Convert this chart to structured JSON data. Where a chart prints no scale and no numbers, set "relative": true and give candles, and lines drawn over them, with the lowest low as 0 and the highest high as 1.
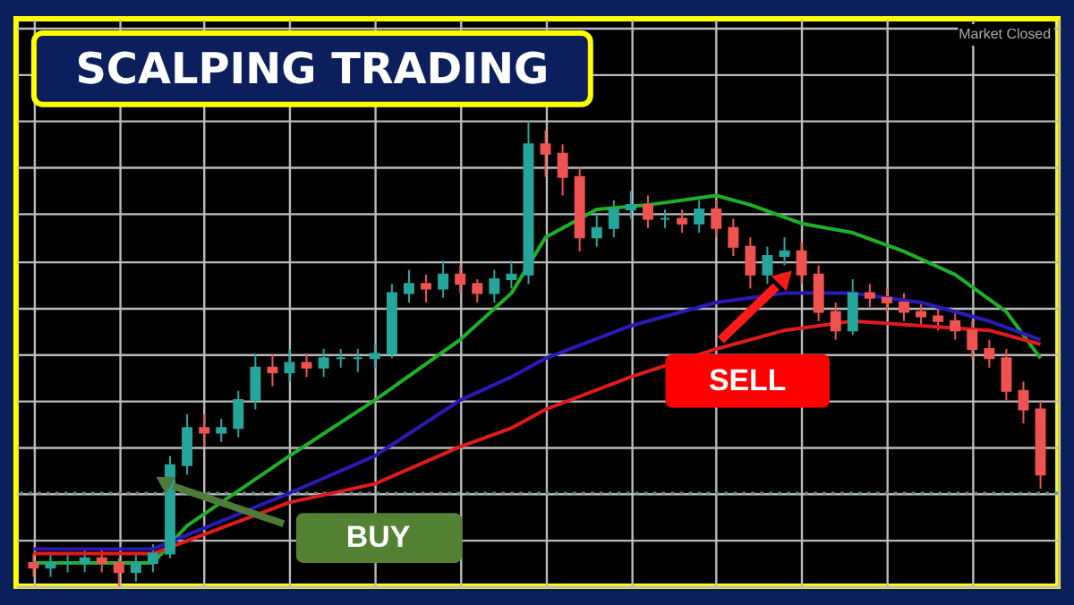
{
  "chart_data": {
    "type": "candlestick",
    "title": "SCALPING TRADING",
    "relative": true,
    "grid": true,
    "categories": [
      null,
      null,
      null,
      null,
      null,
      null,
      null,
      null,
      null,
      null,
      null,
      null,
      null,
      null,
      null,
      null,
      null,
      null,
      null,
      null,
      null,
      null,
      null,
      null,
      null,
      null,
      null,
      null,
      null,
      null,
      null,
      null,
      null,
      null,
      null,
      null,
      null,
      null,
      null,
      null,
      null,
      null,
      null,
      null,
      null,
      null,
      null,
      null,
      null,
      null,
      null,
      null,
      null,
      null,
      null,
      null,
      null,
      null,
      null,
      null
    ],
    "ohlc": [
      [
        0.05,
        0.07,
        0.02,
        0.04
      ],
      [
        0.04,
        0.07,
        0.02,
        0.05
      ],
      [
        0.05,
        0.07,
        0.03,
        0.05
      ],
      [
        0.05,
        0.08,
        0.03,
        0.06
      ],
      [
        0.06,
        0.08,
        0.03,
        0.05
      ],
      [
        0.05,
        0.06,
        0.0,
        0.03
      ],
      [
        0.03,
        0.07,
        0.01,
        0.05
      ],
      [
        0.05,
        0.09,
        0.03,
        0.07
      ],
      [
        0.07,
        0.28,
        0.06,
        0.26
      ],
      [
        0.26,
        0.37,
        0.24,
        0.34
      ],
      [
        0.34,
        0.37,
        0.3,
        0.33
      ],
      [
        0.33,
        0.36,
        0.31,
        0.34
      ],
      [
        0.34,
        0.42,
        0.32,
        0.4
      ],
      [
        0.4,
        0.5,
        0.38,
        0.47
      ],
      [
        0.47,
        0.5,
        0.43,
        0.46
      ],
      [
        0.46,
        0.51,
        0.44,
        0.48
      ],
      [
        0.48,
        0.5,
        0.45,
        0.47
      ],
      [
        0.47,
        0.51,
        0.45,
        0.49
      ],
      [
        0.49,
        0.51,
        0.47,
        0.49
      ],
      [
        0.49,
        0.51,
        0.46,
        0.49
      ],
      [
        0.49,
        0.52,
        0.47,
        0.5
      ],
      [
        0.5,
        0.65,
        0.49,
        0.63
      ],
      [
        0.63,
        0.68,
        0.61,
        0.65
      ],
      [
        0.65,
        0.67,
        0.61,
        0.64
      ],
      [
        0.64,
        0.7,
        0.62,
        0.67
      ],
      [
        0.67,
        0.69,
        0.63,
        0.65
      ],
      [
        0.65,
        0.66,
        0.61,
        0.63
      ],
      [
        0.63,
        0.68,
        0.61,
        0.66
      ],
      [
        0.66,
        0.7,
        0.64,
        0.67
      ],
      [
        0.67,
        1.0,
        0.65,
        0.95
      ],
      [
        0.95,
        0.98,
        0.88,
        0.93
      ],
      [
        0.93,
        0.95,
        0.84,
        0.88
      ],
      [
        0.88,
        0.9,
        0.72,
        0.75
      ],
      [
        0.75,
        0.8,
        0.73,
        0.77
      ],
      [
        0.77,
        0.83,
        0.75,
        0.81
      ],
      [
        0.81,
        0.85,
        0.79,
        0.82
      ],
      [
        0.82,
        0.84,
        0.77,
        0.79
      ],
      [
        0.79,
        0.81,
        0.77,
        0.79
      ],
      [
        0.79,
        0.81,
        0.76,
        0.78
      ],
      [
        0.78,
        0.83,
        0.76,
        0.81
      ],
      [
        0.81,
        0.83,
        0.75,
        0.77
      ],
      [
        0.77,
        0.79,
        0.71,
        0.73
      ],
      [
        0.73,
        0.75,
        0.64,
        0.67
      ],
      [
        0.67,
        0.73,
        0.65,
        0.71
      ],
      [
        0.71,
        0.75,
        0.69,
        0.72
      ],
      [
        0.72,
        0.74,
        0.65,
        0.67
      ],
      [
        0.67,
        0.69,
        0.57,
        0.59
      ],
      [
        0.59,
        0.61,
        0.53,
        0.55
      ],
      [
        0.55,
        0.66,
        0.54,
        0.63
      ],
      [
        0.63,
        0.65,
        0.6,
        0.62
      ],
      [
        0.62,
        0.64,
        0.59,
        0.61
      ],
      [
        0.61,
        0.63,
        0.57,
        0.59
      ],
      [
        0.59,
        0.61,
        0.56,
        0.58
      ],
      [
        0.58,
        0.6,
        0.55,
        0.57
      ],
      [
        0.57,
        0.59,
        0.53,
        0.55
      ],
      [
        0.55,
        0.57,
        0.49,
        0.51
      ],
      [
        0.51,
        0.53,
        0.47,
        0.49
      ],
      [
        0.49,
        0.51,
        0.4,
        0.42
      ],
      [
        0.42,
        0.44,
        0.35,
        0.38
      ],
      [
        0.38,
        0.4,
        0.21,
        0.24
      ]
    ],
    "series": [
      {
        "type": "line",
        "color": "#1fb02a",
        "values": [
          0.05,
          null,
          null,
          null,
          null,
          null,
          null,
          0.05,
          null,
          0.13,
          null,
          null,
          null,
          null,
          null,
          0.28,
          null,
          null,
          null,
          null,
          0.4,
          null,
          null,
          null,
          null,
          0.53,
          null,
          null,
          0.63,
          null,
          0.75,
          null,
          null,
          0.81,
          null,
          null,
          0.82,
          null,
          null,
          null,
          0.84,
          null,
          0.82,
          null,
          null,
          0.78,
          null,
          null,
          0.76,
          null,
          null,
          0.72,
          null,
          null,
          0.67,
          null,
          null,
          0.59,
          null,
          0.49
        ]
      },
      {
        "type": "line",
        "color": "#2a1ab8",
        "values": [
          0.08,
          null,
          null,
          null,
          null,
          null,
          null,
          0.08,
          null,
          null,
          null,
          null,
          null,
          null,
          null,
          0.2,
          null,
          null,
          null,
          null,
          0.28,
          null,
          null,
          null,
          null,
          0.4,
          null,
          null,
          0.45,
          null,
          0.49,
          null,
          null,
          null,
          null,
          0.56,
          null,
          null,
          null,
          null,
          0.61,
          null,
          null,
          null,
          0.63,
          null,
          null,
          null,
          0.63,
          null,
          null,
          null,
          0.61,
          null,
          null,
          null,
          0.57,
          null,
          null,
          0.53
        ]
      },
      {
        "type": "line",
        "color": "#e01b1b",
        "values": [
          0.07,
          null,
          null,
          null,
          null,
          null,
          null,
          0.07,
          null,
          null,
          null,
          null,
          null,
          null,
          null,
          0.18,
          null,
          null,
          null,
          null,
          0.22,
          null,
          null,
          null,
          null,
          0.3,
          null,
          null,
          0.34,
          null,
          0.38,
          null,
          null,
          null,
          null,
          0.45,
          null,
          null,
          null,
          null,
          0.51,
          null,
          null,
          null,
          0.55,
          null,
          null,
          null,
          0.57,
          null,
          null,
          null,
          0.56,
          null,
          null,
          null,
          0.55,
          null,
          null,
          0.52
        ]
      }
    ],
    "ref_lines": [
      {
        "axis": "y",
        "value": 0.2,
        "line_style": "dotted",
        "color": "#6b8a8a"
      }
    ],
    "annotations": [
      "BUY",
      "SELL",
      "Market Closed"
    ]
  }
}
